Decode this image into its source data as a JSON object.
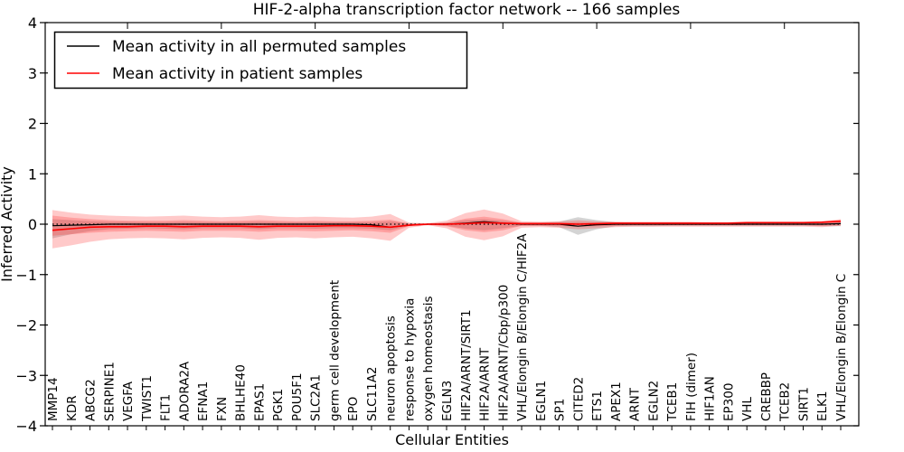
{
  "chart_data": {
    "type": "line",
    "title": "HIF-2-alpha transcription factor network -- 166 samples",
    "xlabel": "Cellular Entities",
    "ylabel": "Inferred Activity",
    "ylim": [
      -4,
      4
    ],
    "grid": false,
    "legend_position": "upper left",
    "zero_reference_line": "dotted black at y=0",
    "colors": {
      "permuted_line": "#000000",
      "patient_line": "#ff0000",
      "patient_band_fill": "rgba(255,40,40,0.25)",
      "permuted_band_fill": "rgba(100,100,100,0.28)"
    },
    "y_ticks": [
      {
        "v": 4,
        "label": "4"
      },
      {
        "v": 3,
        "label": "3"
      },
      {
        "v": 2,
        "label": "2"
      },
      {
        "v": 1,
        "label": "1"
      },
      {
        "v": 0,
        "label": "0"
      },
      {
        "v": -1,
        "label": "−1"
      },
      {
        "v": -2,
        "label": "−2"
      },
      {
        "v": -3,
        "label": "−3"
      },
      {
        "v": -4,
        "label": "−4"
      }
    ],
    "categories": [
      "MMP14",
      "KDR",
      "ABCG2",
      "SERPINE1",
      "VEGFA",
      "TWIST1",
      "FLT1",
      "ADORA2A",
      "EFNA1",
      "FXN",
      "BHLHE40",
      "EPAS1",
      "PGK1",
      "POU5F1",
      "SLC2A1",
      "germ cell development",
      "EPO",
      "SLC11A2",
      "neuron apoptosis",
      "response to hypoxia",
      "oxygen homeostasis",
      "EGLN3",
      "HIF2A/ARNT/SIRT1",
      "HIF2A/ARNT",
      "HIF2A/ARNT/Cbp/p300",
      "VHL/Elongin B/Elongin C/HIF2A",
      "EGLN1",
      "SP1",
      "CITED2",
      "ETS1",
      "APEX1",
      "ARNT",
      "EGLN2",
      "TCEB1",
      "FIH (dimer)",
      "HIF1AN",
      "EP300",
      "VHL",
      "CREBBP",
      "TCEB2",
      "SIRT1",
      "ELK1",
      "VHL/Elongin B/Elongin C"
    ],
    "legend": [
      {
        "label": "Mean activity in all permuted samples",
        "color": "#000000"
      },
      {
        "label": "Mean activity in patient samples",
        "color": "#ff0000"
      }
    ],
    "series": [
      {
        "name": "Mean activity in all permuted samples",
        "color": "#000000",
        "values": [
          -0.03,
          -0.02,
          -0.01,
          0,
          0,
          0,
          0,
          0,
          0,
          0,
          0,
          0,
          0,
          0,
          0,
          0,
          0,
          -0.01,
          -0.06,
          -0.02,
          0,
          0,
          0.02,
          0.05,
          0.02,
          0,
          0,
          0,
          -0.04,
          -0.01,
          0,
          0,
          0,
          0,
          0,
          0,
          0,
          0,
          0,
          0,
          0,
          0,
          0.01
        ]
      },
      {
        "name": "Mean activity in patient samples",
        "color": "#ff0000",
        "values": [
          -0.12,
          -0.09,
          -0.06,
          -0.05,
          -0.05,
          -0.04,
          -0.04,
          -0.05,
          -0.04,
          -0.04,
          -0.04,
          -0.05,
          -0.04,
          -0.04,
          -0.04,
          -0.03,
          -0.03,
          -0.04,
          -0.06,
          -0.02,
          0,
          0,
          0.01,
          0.03,
          0.02,
          0.01,
          0.01,
          0.01,
          0,
          0.01,
          0.02,
          0.02,
          0.02,
          0.02,
          0.02,
          0.02,
          0.02,
          0.03,
          0.03,
          0.03,
          0.03,
          0.04,
          0.06
        ]
      }
    ],
    "bands": [
      {
        "name": "permuted-range",
        "fill": "rgba(100,100,100,0.28)",
        "top": [
          0.1,
          0.08,
          0.06,
          0.05,
          0.05,
          0.04,
          0.04,
          0.05,
          0.04,
          0.04,
          0.04,
          0.05,
          0.04,
          0.04,
          0.04,
          0.04,
          0.04,
          0.04,
          0.06,
          0.02,
          0.01,
          0.03,
          0.08,
          0.1,
          0.07,
          0.03,
          0.03,
          0.05,
          0.14,
          0.08,
          0.04,
          0.03,
          0.03,
          0.03,
          0.03,
          0.03,
          0.03,
          0.03,
          0.03,
          0.03,
          0.03,
          0.03,
          0.04
        ],
        "bottom": [
          -0.28,
          -0.2,
          -0.14,
          -0.1,
          -0.09,
          -0.08,
          -0.09,
          -0.1,
          -0.08,
          -0.08,
          -0.08,
          -0.1,
          -0.08,
          -0.08,
          -0.09,
          -0.08,
          -0.08,
          -0.09,
          -0.12,
          -0.03,
          -0.01,
          -0.03,
          -0.09,
          -0.12,
          -0.08,
          -0.03,
          -0.03,
          -0.06,
          -0.21,
          -0.1,
          -0.04,
          -0.04,
          -0.04,
          -0.03,
          -0.03,
          -0.03,
          -0.03,
          -0.03,
          -0.03,
          -0.03,
          -0.03,
          -0.04,
          -0.04
        ]
      },
      {
        "name": "patient-range-outer",
        "fill": "rgba(255,40,40,0.25)",
        "top": [
          0.28,
          0.23,
          0.19,
          0.17,
          0.16,
          0.15,
          0.16,
          0.17,
          0.15,
          0.14,
          0.15,
          0.18,
          0.15,
          0.14,
          0.15,
          0.14,
          0.13,
          0.15,
          0.2,
          0.03,
          0.02,
          0.07,
          0.22,
          0.29,
          0.21,
          0.06,
          0.05,
          0.06,
          0.08,
          0.06,
          0.05,
          0.05,
          0.05,
          0.05,
          0.05,
          0.04,
          0.04,
          0.05,
          0.05,
          0.05,
          0.05,
          0.06,
          0.1
        ],
        "bottom": [
          -0.48,
          -0.42,
          -0.35,
          -0.3,
          -0.28,
          -0.27,
          -0.28,
          -0.3,
          -0.27,
          -0.26,
          -0.27,
          -0.31,
          -0.27,
          -0.26,
          -0.28,
          -0.26,
          -0.25,
          -0.28,
          -0.33,
          -0.07,
          -0.02,
          -0.08,
          -0.25,
          -0.32,
          -0.24,
          -0.07,
          -0.06,
          -0.07,
          -0.1,
          -0.08,
          -0.06,
          -0.05,
          -0.05,
          -0.05,
          -0.05,
          -0.05,
          -0.05,
          -0.05,
          -0.05,
          -0.05,
          -0.05,
          -0.06,
          -0.03
        ]
      },
      {
        "name": "patient-range-inner",
        "fill": "rgba(255,40,40,0.25)",
        "top": [
          0.17,
          0.13,
          0.1,
          0.08,
          0.07,
          0.07,
          0.07,
          0.08,
          0.07,
          0.06,
          0.07,
          0.08,
          0.07,
          0.06,
          0.07,
          0.06,
          0.06,
          0.07,
          0.09,
          0.01,
          0.01,
          0.03,
          0.11,
          0.15,
          0.1,
          0.03,
          0.03,
          0.03,
          0.04,
          0.03,
          0.03,
          0.03,
          0.03,
          0.03,
          0.03,
          0.03,
          0.03,
          0.04,
          0.04,
          0.04,
          0.04,
          0.05,
          0.08
        ],
        "bottom": [
          -0.23,
          -0.2,
          -0.17,
          -0.15,
          -0.14,
          -0.13,
          -0.14,
          -0.15,
          -0.13,
          -0.13,
          -0.13,
          -0.15,
          -0.13,
          -0.13,
          -0.14,
          -0.13,
          -0.12,
          -0.14,
          -0.17,
          -0.04,
          -0.01,
          -0.04,
          -0.12,
          -0.16,
          -0.12,
          -0.03,
          -0.03,
          -0.03,
          -0.05,
          -0.04,
          -0.03,
          -0.02,
          -0.02,
          -0.02,
          -0.02,
          -0.02,
          -0.02,
          -0.02,
          -0.02,
          -0.02,
          -0.02,
          -0.03,
          -0.02
        ]
      }
    ]
  }
}
